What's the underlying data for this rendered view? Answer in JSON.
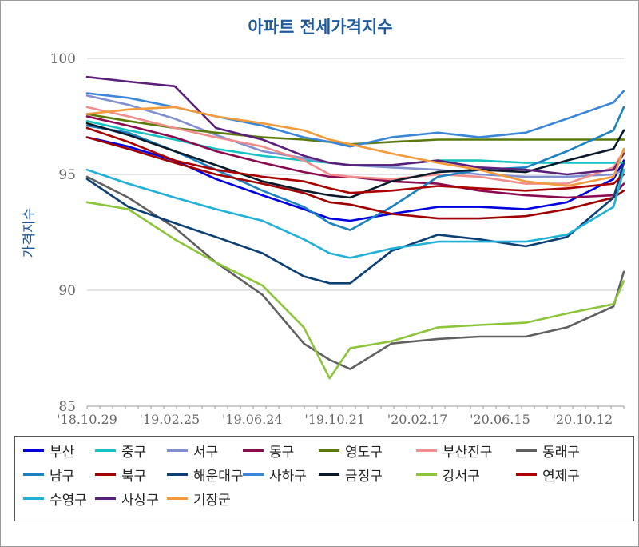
{
  "chart_data": {
    "type": "line",
    "title": "아파트 전세가격지수",
    "ylabel": "가격지수",
    "xlabel": "",
    "ylim": [
      85,
      100
    ],
    "yticks": [
      85,
      90,
      95,
      100
    ],
    "grid": true,
    "legend_position": "bottom",
    "x_tick_labels": [
      "'18.10.29",
      "'19.02.25",
      "'19.06.24",
      "'19.10.21",
      "'20.02.17",
      "'20.06.15",
      "'20.10.12"
    ],
    "x": [
      "2018-10-29",
      "2018-12-24",
      "2019-02-25",
      "2019-04-22",
      "2019-06-24",
      "2019-08-19",
      "2019-09-23",
      "2019-10-21",
      "2019-12-16",
      "2020-02-17",
      "2020-04-13",
      "2020-06-15",
      "2020-08-10",
      "2020-10-12",
      "2020-10-26"
    ],
    "series": [
      {
        "name": "부산",
        "color": "#0000e0",
        "values": [
          96.6,
          96.2,
          95.6,
          94.8,
          94.1,
          93.5,
          93.1,
          93.0,
          93.3,
          93.6,
          93.6,
          93.5,
          93.8,
          94.8,
          95.6
        ]
      },
      {
        "name": "중구",
        "color": "#17c2c2",
        "values": [
          97.3,
          96.9,
          96.5,
          96.1,
          95.8,
          95.6,
          95.5,
          95.4,
          95.4,
          95.6,
          95.6,
          95.5,
          95.5,
          95.5,
          95.5
        ]
      },
      {
        "name": "서구",
        "color": "#7f8fcf",
        "values": [
          98.4,
          98.0,
          97.4,
          96.7,
          96.0,
          95.7,
          95.5,
          95.4,
          95.3,
          95.2,
          95.0,
          94.9,
          94.9,
          95.0,
          95.2
        ]
      },
      {
        "name": "동구",
        "color": "#8b0a50",
        "values": [
          97.5,
          97.1,
          96.6,
          96.0,
          95.5,
          95.1,
          94.9,
          94.9,
          94.7,
          94.6,
          94.3,
          94.1,
          94.0,
          94.1,
          94.6
        ]
      },
      {
        "name": "영도구",
        "color": "#5b7a0a",
        "values": [
          97.6,
          97.3,
          97.0,
          96.8,
          96.6,
          96.5,
          96.4,
          96.3,
          96.4,
          96.5,
          96.5,
          96.5,
          96.5,
          96.5,
          96.5
        ]
      },
      {
        "name": "부산진구",
        "color": "#f08c8c",
        "values": [
          97.9,
          97.5,
          97.0,
          96.6,
          96.2,
          95.6,
          95.0,
          94.9,
          94.8,
          95.0,
          94.9,
          94.6,
          94.6,
          95.3,
          96.0
        ]
      },
      {
        "name": "동래구",
        "color": "#606060",
        "values": [
          94.9,
          94.0,
          92.7,
          91.2,
          89.8,
          87.7,
          87.0,
          86.6,
          87.7,
          87.9,
          88.0,
          88.0,
          88.4,
          89.3,
          90.8
        ]
      },
      {
        "name": "남구",
        "color": "#1a82c0",
        "values": [
          97.1,
          96.8,
          96.0,
          95.2,
          94.3,
          93.6,
          92.9,
          92.6,
          93.6,
          94.9,
          95.2,
          95.3,
          96.0,
          96.9,
          97.9
        ]
      },
      {
        "name": "북구",
        "color": "#a00000",
        "values": [
          96.6,
          96.1,
          95.5,
          95.0,
          94.6,
          94.2,
          93.8,
          93.7,
          93.3,
          93.1,
          93.1,
          93.2,
          93.5,
          94.0,
          94.3
        ]
      },
      {
        "name": "해운대구",
        "color": "#0c3f73",
        "values": [
          94.8,
          93.6,
          92.9,
          92.3,
          91.6,
          90.6,
          90.3,
          90.3,
          91.7,
          92.4,
          92.2,
          91.9,
          92.3,
          94.0,
          95.5
        ]
      },
      {
        "name": "사하구",
        "color": "#3a86d8",
        "values": [
          98.5,
          98.3,
          97.9,
          97.5,
          97.1,
          96.6,
          96.4,
          96.2,
          96.6,
          96.8,
          96.6,
          96.8,
          97.4,
          98.1,
          98.6
        ]
      },
      {
        "name": "금정구",
        "color": "#0a1a2a",
        "values": [
          97.2,
          96.7,
          96.0,
          95.4,
          94.7,
          94.3,
          94.1,
          94.0,
          94.7,
          95.1,
          95.2,
          95.1,
          95.6,
          96.1,
          96.9
        ]
      },
      {
        "name": "강서구",
        "color": "#8cc43a",
        "values": [
          93.8,
          93.5,
          92.2,
          91.2,
          90.2,
          88.4,
          86.2,
          87.5,
          87.8,
          88.4,
          88.5,
          88.6,
          89.0,
          89.4,
          90.4
        ]
      },
      {
        "name": "연제구",
        "color": "#aa0000",
        "values": [
          97.0,
          96.4,
          95.6,
          95.2,
          94.9,
          94.7,
          94.4,
          94.2,
          94.3,
          94.5,
          94.4,
          94.3,
          94.4,
          94.6,
          95.0
        ]
      },
      {
        "name": "수영구",
        "color": "#20b0d8",
        "values": [
          95.2,
          94.6,
          94.0,
          93.5,
          93.0,
          92.2,
          91.6,
          91.4,
          91.8,
          92.1,
          92.1,
          92.1,
          92.4,
          93.6,
          95.2
        ]
      },
      {
        "name": "사상구",
        "color": "#5a1f7a",
        "values": [
          99.2,
          99.0,
          98.8,
          97.0,
          96.5,
          95.8,
          95.5,
          95.4,
          95.4,
          95.6,
          95.3,
          95.2,
          95.0,
          95.2,
          95.9
        ]
      },
      {
        "name": "기장군",
        "color": "#f39a3a",
        "values": [
          97.6,
          97.8,
          97.9,
          97.5,
          97.2,
          96.9,
          96.5,
          96.3,
          95.9,
          95.5,
          95.2,
          94.7,
          94.5,
          94.9,
          96.1
        ]
      }
    ]
  }
}
